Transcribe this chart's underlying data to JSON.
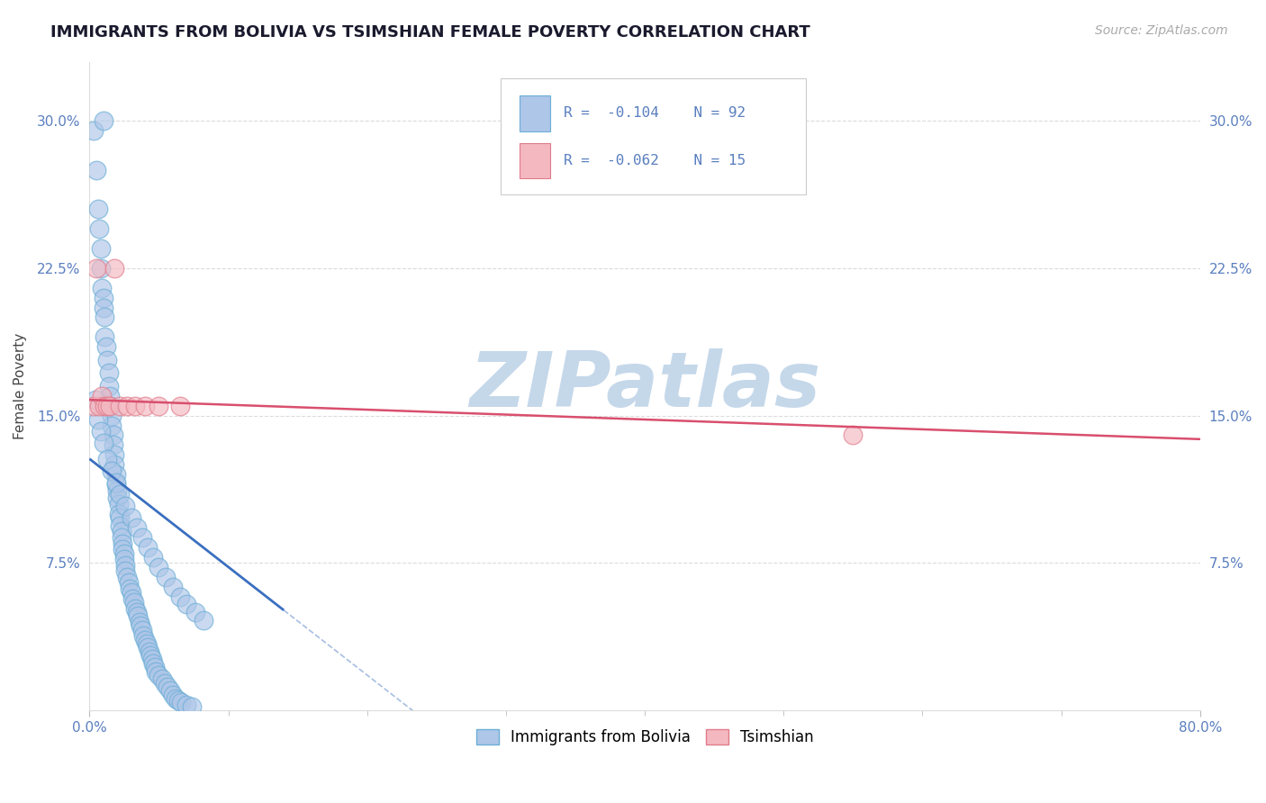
{
  "title": "IMMIGRANTS FROM BOLIVIA VS TSIMSHIAN FEMALE POVERTY CORRELATION CHART",
  "source": "Source: ZipAtlas.com",
  "ylabel": "Female Poverty",
  "xlim": [
    0.0,
    0.8
  ],
  "ylim": [
    0.0,
    0.33
  ],
  "yticks": [
    0.075,
    0.15,
    0.225,
    0.3
  ],
  "ytick_labels": [
    "7.5%",
    "15.0%",
    "22.5%",
    "30.0%"
  ],
  "xtick_positions": [
    0.0,
    0.8
  ],
  "xtick_labels": [
    "0.0%",
    "80.0%"
  ],
  "series1_color": "#aec6e8",
  "series2_color": "#f4b8c1",
  "series1_edge": "#6baed6",
  "series2_edge": "#e07b8a",
  "trendline1_color": "#3a6fbf",
  "trendline2_color": "#d94f6e",
  "trendline1_solid_end": 0.14,
  "trendline1_intercept": 0.128,
  "trendline1_slope": -0.55,
  "trendline2_intercept": 0.158,
  "trendline2_slope": -0.025,
  "legend1_label": "Immigrants from Bolivia",
  "legend2_label": "Tsimshian",
  "watermark": "ZIPatlas",
  "watermark_color": "#c5d8ea",
  "title_color": "#1a1a2e",
  "axis_color": "#5a7fbf",
  "legend_text_color": "#5a7fbf",
  "source_color": "#aaaaaa",
  "background_color": "#ffffff",
  "grid_color": "#cccccc",
  "bolivia_x": [
    0.003,
    0.005,
    0.006,
    0.007,
    0.008,
    0.008,
    0.009,
    0.01,
    0.01,
    0.011,
    0.011,
    0.012,
    0.013,
    0.014,
    0.014,
    0.015,
    0.015,
    0.016,
    0.016,
    0.017,
    0.017,
    0.018,
    0.018,
    0.019,
    0.019,
    0.02,
    0.02,
    0.021,
    0.021,
    0.022,
    0.022,
    0.023,
    0.023,
    0.024,
    0.024,
    0.025,
    0.025,
    0.026,
    0.026,
    0.027,
    0.028,
    0.029,
    0.03,
    0.031,
    0.032,
    0.033,
    0.034,
    0.035,
    0.036,
    0.037,
    0.038,
    0.039,
    0.04,
    0.041,
    0.042,
    0.043,
    0.044,
    0.045,
    0.046,
    0.047,
    0.048,
    0.05,
    0.052,
    0.054,
    0.056,
    0.058,
    0.06,
    0.062,
    0.064,
    0.066,
    0.07,
    0.074,
    0.004,
    0.006,
    0.008,
    0.01,
    0.013,
    0.016,
    0.019,
    0.022,
    0.026,
    0.03,
    0.034,
    0.038,
    0.042,
    0.046,
    0.05,
    0.055,
    0.06,
    0.065,
    0.07,
    0.076,
    0.082,
    0.01
  ],
  "bolivia_y": [
    0.295,
    0.275,
    0.255,
    0.245,
    0.235,
    0.225,
    0.215,
    0.21,
    0.205,
    0.2,
    0.19,
    0.185,
    0.178,
    0.172,
    0.165,
    0.16,
    0.155,
    0.15,
    0.145,
    0.14,
    0.135,
    0.13,
    0.125,
    0.12,
    0.115,
    0.112,
    0.108,
    0.105,
    0.1,
    0.098,
    0.094,
    0.091,
    0.088,
    0.085,
    0.082,
    0.08,
    0.077,
    0.074,
    0.071,
    0.068,
    0.065,
    0.062,
    0.06,
    0.057,
    0.055,
    0.052,
    0.05,
    0.048,
    0.045,
    0.043,
    0.041,
    0.038,
    0.036,
    0.034,
    0.032,
    0.03,
    0.028,
    0.026,
    0.024,
    0.022,
    0.02,
    0.018,
    0.016,
    0.014,
    0.012,
    0.01,
    0.008,
    0.006,
    0.005,
    0.004,
    0.003,
    0.002,
    0.158,
    0.148,
    0.142,
    0.136,
    0.128,
    0.122,
    0.116,
    0.11,
    0.104,
    0.098,
    0.093,
    0.088,
    0.083,
    0.078,
    0.073,
    0.068,
    0.063,
    0.058,
    0.054,
    0.05,
    0.046,
    0.3
  ],
  "tsimshian_x": [
    0.003,
    0.005,
    0.007,
    0.009,
    0.011,
    0.013,
    0.015,
    0.018,
    0.022,
    0.027,
    0.033,
    0.04,
    0.05,
    0.065,
    0.55
  ],
  "tsimshian_y": [
    0.155,
    0.225,
    0.155,
    0.16,
    0.155,
    0.155,
    0.155,
    0.225,
    0.155,
    0.155,
    0.155,
    0.155,
    0.155,
    0.155,
    0.14
  ]
}
